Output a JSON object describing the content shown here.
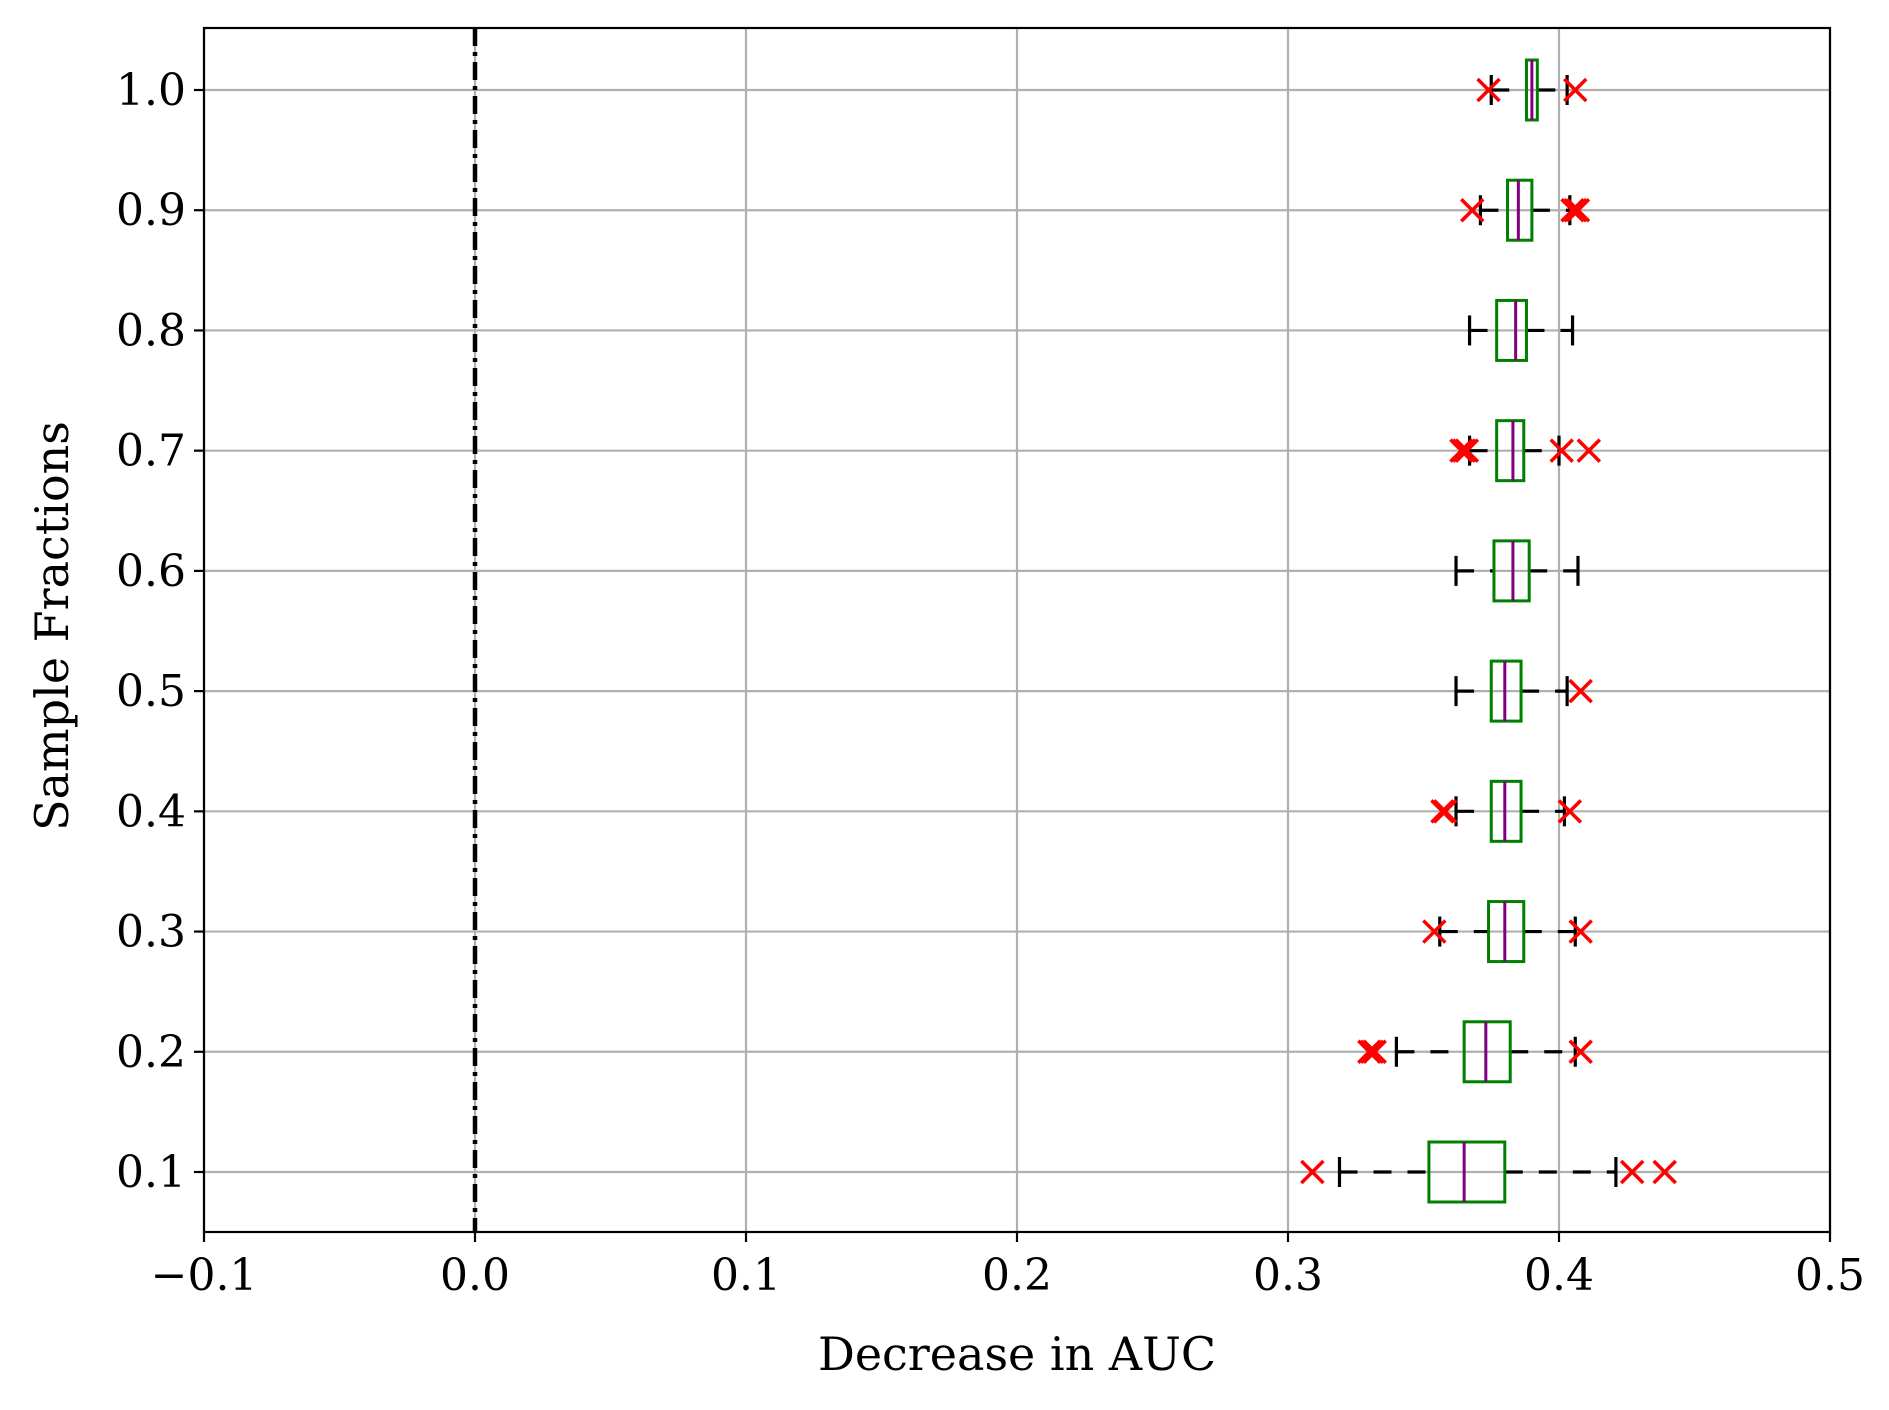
{
  "chart_data": {
    "type": "boxplot",
    "orientation": "horizontal",
    "xlabel": "Decrease in AUC",
    "ylabel": "Sample Fractions",
    "xlim": [
      -0.1,
      0.5
    ],
    "x_ticks": [
      -0.1,
      0.0,
      0.1,
      0.2,
      0.3,
      0.4,
      0.5
    ],
    "x_tick_labels": [
      "−0.1",
      "0.0",
      "0.1",
      "0.2",
      "0.3",
      "0.4",
      "0.5"
    ],
    "grid": true,
    "reference_line": {
      "x": 0.0,
      "style": "dash-dot",
      "color": "#000000"
    },
    "colors": {
      "box": "#008000",
      "median": "#800080",
      "whisker": "#000000",
      "flier": "#ff0000",
      "grid": "#b0b0b0"
    },
    "categories": [
      "0.1",
      "0.2",
      "0.3",
      "0.4",
      "0.5",
      "0.6",
      "0.7",
      "0.8",
      "0.9",
      "1.0"
    ],
    "boxes": [
      {
        "label": "0.1",
        "whislo": 0.319,
        "q1": 0.352,
        "med": 0.365,
        "q3": 0.38,
        "whishi": 0.421,
        "fliers": [
          0.309,
          0.427,
          0.439
        ]
      },
      {
        "label": "0.2",
        "whislo": 0.34,
        "q1": 0.365,
        "med": 0.373,
        "q3": 0.382,
        "whishi": 0.406,
        "fliers": [
          0.33,
          0.331,
          0.332,
          0.408
        ]
      },
      {
        "label": "0.3",
        "whislo": 0.356,
        "q1": 0.374,
        "med": 0.38,
        "q3": 0.387,
        "whishi": 0.406,
        "fliers": [
          0.354,
          0.408
        ]
      },
      {
        "label": "0.4",
        "whislo": 0.362,
        "q1": 0.375,
        "med": 0.38,
        "q3": 0.386,
        "whishi": 0.402,
        "fliers": [
          0.357,
          0.358,
          0.404
        ]
      },
      {
        "label": "0.5",
        "whislo": 0.362,
        "q1": 0.375,
        "med": 0.38,
        "q3": 0.386,
        "whishi": 0.403,
        "fliers": [
          0.408
        ]
      },
      {
        "label": "0.6",
        "whislo": 0.362,
        "q1": 0.376,
        "med": 0.383,
        "q3": 0.389,
        "whishi": 0.407,
        "fliers": []
      },
      {
        "label": "0.7",
        "whislo": 0.367,
        "q1": 0.377,
        "med": 0.383,
        "q3": 0.387,
        "whishi": 0.4,
        "fliers": [
          0.364,
          0.365,
          0.366,
          0.401,
          0.411
        ]
      },
      {
        "label": "0.8",
        "whislo": 0.367,
        "q1": 0.377,
        "med": 0.384,
        "q3": 0.388,
        "whishi": 0.405,
        "fliers": []
      },
      {
        "label": "0.9",
        "whislo": 0.371,
        "q1": 0.381,
        "med": 0.385,
        "q3": 0.39,
        "whishi": 0.404,
        "fliers": [
          0.368,
          0.405,
          0.406,
          0.407
        ]
      },
      {
        "label": "1.0",
        "whislo": 0.375,
        "q1": 0.388,
        "med": 0.39,
        "q3": 0.392,
        "whishi": 0.403,
        "fliers": [
          0.374,
          0.406
        ]
      }
    ]
  }
}
